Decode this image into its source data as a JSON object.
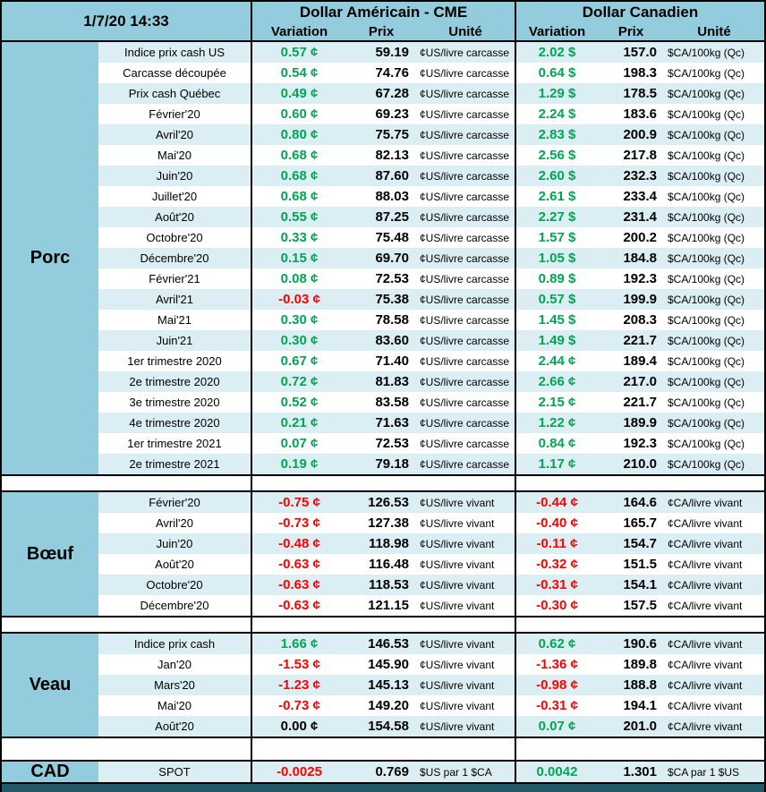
{
  "colors": {
    "header_blue": "#93CDDD",
    "band_blue": "#DAEEF3",
    "positive": "#00A651",
    "negative": "#FF0000",
    "footer_navy": "#215967"
  },
  "chart_data": {
    "type": "table",
    "timestamp": "1/7/20 14:33",
    "column_groups": [
      {
        "title": "Dollar Américain - CME",
        "columns": [
          "Variation",
          "Prix",
          "Unité"
        ]
      },
      {
        "title": "Dollar Canadien",
        "columns": [
          "Variation",
          "Prix",
          "Unité"
        ]
      }
    ],
    "sections": [
      {
        "name": "Porc",
        "rows": [
          {
            "label": "Indice prix cash US",
            "us": {
              "var": "0.57 ¢",
              "trend": "up",
              "prix": "59.19",
              "unit": "¢US/livre carcasse"
            },
            "ca": {
              "var": "2.02 $",
              "trend": "up",
              "prix": "157.0",
              "unit": "$CA/100kg (Qc)"
            }
          },
          {
            "label": "Carcasse découpée",
            "us": {
              "var": "0.54 ¢",
              "trend": "up",
              "prix": "74.76",
              "unit": "¢US/livre carcasse"
            },
            "ca": {
              "var": "0.64 $",
              "trend": "up",
              "prix": "198.3",
              "unit": "$CA/100kg (Qc)"
            }
          },
          {
            "label": "Prix cash Québec",
            "us": {
              "var": "0.49 ¢",
              "trend": "up",
              "prix": "67.28",
              "unit": "¢US/livre carcasse"
            },
            "ca": {
              "var": "1.29 $",
              "trend": "up",
              "prix": "178.5",
              "unit": "$CA/100kg (Qc)"
            }
          },
          {
            "label": "Février'20",
            "us": {
              "var": "0.60 ¢",
              "trend": "up",
              "prix": "69.23",
              "unit": "¢US/livre carcasse"
            },
            "ca": {
              "var": "2.24 $",
              "trend": "up",
              "prix": "183.6",
              "unit": "$CA/100kg (Qc)"
            }
          },
          {
            "label": "Avril'20",
            "us": {
              "var": "0.80 ¢",
              "trend": "up",
              "prix": "75.75",
              "unit": "¢US/livre carcasse"
            },
            "ca": {
              "var": "2.83 $",
              "trend": "up",
              "prix": "200.9",
              "unit": "$CA/100kg (Qc)"
            }
          },
          {
            "label": "Mai'20",
            "us": {
              "var": "0.68 ¢",
              "trend": "up",
              "prix": "82.13",
              "unit": "¢US/livre carcasse"
            },
            "ca": {
              "var": "2.56 $",
              "trend": "up",
              "prix": "217.8",
              "unit": "$CA/100kg (Qc)"
            }
          },
          {
            "label": "Juin'20",
            "us": {
              "var": "0.68 ¢",
              "trend": "up",
              "prix": "87.60",
              "unit": "¢US/livre carcasse"
            },
            "ca": {
              "var": "2.60 $",
              "trend": "up",
              "prix": "232.3",
              "unit": "$CA/100kg (Qc)"
            }
          },
          {
            "label": "Juillet'20",
            "us": {
              "var": "0.68 ¢",
              "trend": "up",
              "prix": "88.03",
              "unit": "¢US/livre carcasse"
            },
            "ca": {
              "var": "2.61 $",
              "trend": "up",
              "prix": "233.4",
              "unit": "$CA/100kg (Qc)"
            }
          },
          {
            "label": "Août'20",
            "us": {
              "var": "0.55 ¢",
              "trend": "up",
              "prix": "87.25",
              "unit": "¢US/livre carcasse"
            },
            "ca": {
              "var": "2.27 $",
              "trend": "up",
              "prix": "231.4",
              "unit": "$CA/100kg (Qc)"
            }
          },
          {
            "label": "Octobre'20",
            "us": {
              "var": "0.33 ¢",
              "trend": "up",
              "prix": "75.48",
              "unit": "¢US/livre carcasse"
            },
            "ca": {
              "var": "1.57 $",
              "trend": "up",
              "prix": "200.2",
              "unit": "$CA/100kg (Qc)"
            }
          },
          {
            "label": "Décembre'20",
            "us": {
              "var": "0.15 ¢",
              "trend": "up",
              "prix": "69.70",
              "unit": "¢US/livre carcasse"
            },
            "ca": {
              "var": "1.05 $",
              "trend": "up",
              "prix": "184.8",
              "unit": "$CA/100kg (Qc)"
            }
          },
          {
            "label": "Février'21",
            "us": {
              "var": "0.08 ¢",
              "trend": "up",
              "prix": "72.53",
              "unit": "¢US/livre carcasse"
            },
            "ca": {
              "var": "0.89 $",
              "trend": "up",
              "prix": "192.3",
              "unit": "$CA/100kg (Qc)"
            }
          },
          {
            "label": "Avril'21",
            "us": {
              "var": "-0.03 ¢",
              "trend": "down",
              "prix": "75.38",
              "unit": "¢US/livre carcasse"
            },
            "ca": {
              "var": "0.57 $",
              "trend": "up",
              "prix": "199.9",
              "unit": "$CA/100kg (Qc)"
            }
          },
          {
            "label": "Mai'21",
            "us": {
              "var": "0.30 ¢",
              "trend": "up",
              "prix": "78.58",
              "unit": "¢US/livre carcasse"
            },
            "ca": {
              "var": "1.45 $",
              "trend": "up",
              "prix": "208.3",
              "unit": "$CA/100kg (Qc)"
            }
          },
          {
            "label": "Juin'21",
            "us": {
              "var": "0.30 ¢",
              "trend": "up",
              "prix": "83.60",
              "unit": "¢US/livre carcasse"
            },
            "ca": {
              "var": "1.49 $",
              "trend": "up",
              "prix": "221.7",
              "unit": "$CA/100kg (Qc)"
            }
          },
          {
            "label": "1er trimestre 2020",
            "us": {
              "var": "0.67 ¢",
              "trend": "up",
              "prix": "71.40",
              "unit": "¢US/livre carcasse"
            },
            "ca": {
              "var": "2.44 ¢",
              "trend": "up",
              "prix": "189.4",
              "unit": "$CA/100kg (Qc)"
            }
          },
          {
            "label": "2e trimestre 2020",
            "us": {
              "var": "0.72 ¢",
              "trend": "up",
              "prix": "81.83",
              "unit": "¢US/livre carcasse"
            },
            "ca": {
              "var": "2.66 ¢",
              "trend": "up",
              "prix": "217.0",
              "unit": "$CA/100kg (Qc)"
            }
          },
          {
            "label": "3e trimestre 2020",
            "us": {
              "var": "0.52 ¢",
              "trend": "up",
              "prix": "83.58",
              "unit": "¢US/livre carcasse"
            },
            "ca": {
              "var": "2.15 ¢",
              "trend": "up",
              "prix": "221.7",
              "unit": "$CA/100kg (Qc)"
            }
          },
          {
            "label": "4e trimestre 2020",
            "us": {
              "var": "0.21 ¢",
              "trend": "up",
              "prix": "71.63",
              "unit": "¢US/livre carcasse"
            },
            "ca": {
              "var": "1.22 ¢",
              "trend": "up",
              "prix": "189.9",
              "unit": "$CA/100kg (Qc)"
            }
          },
          {
            "label": "1er trimestre 2021",
            "us": {
              "var": "0.07 ¢",
              "trend": "up",
              "prix": "72.53",
              "unit": "¢US/livre carcasse"
            },
            "ca": {
              "var": "0.84 ¢",
              "trend": "up",
              "prix": "192.3",
              "unit": "$CA/100kg (Qc)"
            }
          },
          {
            "label": "2e trimestre 2021",
            "us": {
              "var": "0.19 ¢",
              "trend": "up",
              "prix": "79.18",
              "unit": "¢US/livre carcasse"
            },
            "ca": {
              "var": "1.17 ¢",
              "trend": "up",
              "prix": "210.0",
              "unit": "$CA/100kg (Qc)"
            }
          }
        ]
      },
      {
        "name": "Bœuf",
        "rows": [
          {
            "label": "Février'20",
            "us": {
              "var": "-0.75 ¢",
              "trend": "down",
              "prix": "126.53",
              "unit": "¢US/livre vivant"
            },
            "ca": {
              "var": "-0.44 ¢",
              "trend": "down",
              "prix": "164.6",
              "unit": "¢CA/livre vivant"
            }
          },
          {
            "label": "Avril'20",
            "us": {
              "var": "-0.73 ¢",
              "trend": "down",
              "prix": "127.38",
              "unit": "¢US/livre vivant"
            },
            "ca": {
              "var": "-0.40 ¢",
              "trend": "down",
              "prix": "165.7",
              "unit": "¢CA/livre vivant"
            }
          },
          {
            "label": "Juin'20",
            "us": {
              "var": "-0.48 ¢",
              "trend": "down",
              "prix": "118.98",
              "unit": "¢US/livre vivant"
            },
            "ca": {
              "var": "-0.11 ¢",
              "trend": "down",
              "prix": "154.7",
              "unit": "¢CA/livre vivant"
            }
          },
          {
            "label": "Août'20",
            "us": {
              "var": "-0.63 ¢",
              "trend": "down",
              "prix": "116.48",
              "unit": "¢US/livre vivant"
            },
            "ca": {
              "var": "-0.32 ¢",
              "trend": "down",
              "prix": "151.5",
              "unit": "¢CA/livre vivant"
            }
          },
          {
            "label": "Octobre'20",
            "us": {
              "var": "-0.63 ¢",
              "trend": "down",
              "prix": "118.53",
              "unit": "¢US/livre vivant"
            },
            "ca": {
              "var": "-0.31 ¢",
              "trend": "down",
              "prix": "154.1",
              "unit": "¢CA/livre vivant"
            }
          },
          {
            "label": "Décembre'20",
            "us": {
              "var": "-0.63 ¢",
              "trend": "down",
              "prix": "121.15",
              "unit": "¢US/livre vivant"
            },
            "ca": {
              "var": "-0.30 ¢",
              "trend": "down",
              "prix": "157.5",
              "unit": "¢CA/livre vivant"
            }
          }
        ]
      },
      {
        "name": "Veau",
        "rows": [
          {
            "label": "Indice prix cash",
            "us": {
              "var": "1.66 ¢",
              "trend": "up",
              "prix": "146.53",
              "unit": "¢US/livre vivant"
            },
            "ca": {
              "var": "0.62 ¢",
              "trend": "up",
              "prix": "190.6",
              "unit": "¢CA/livre vivant"
            }
          },
          {
            "label": "Jan'20",
            "us": {
              "var": "-1.53 ¢",
              "trend": "down",
              "prix": "145.90",
              "unit": "¢US/livre vivant"
            },
            "ca": {
              "var": "-1.36 ¢",
              "trend": "down",
              "prix": "189.8",
              "unit": "¢CA/livre vivant"
            }
          },
          {
            "label": "Mars'20",
            "us": {
              "var": "-1.23 ¢",
              "trend": "down",
              "prix": "145.13",
              "unit": "¢US/livre vivant"
            },
            "ca": {
              "var": "-0.98 ¢",
              "trend": "down",
              "prix": "188.8",
              "unit": "¢CA/livre vivant"
            }
          },
          {
            "label": "Mai'20",
            "us": {
              "var": "-0.73 ¢",
              "trend": "down",
              "prix": "149.20",
              "unit": "¢US/livre vivant"
            },
            "ca": {
              "var": "-0.31 ¢",
              "trend": "down",
              "prix": "194.1",
              "unit": "¢CA/livre vivant"
            }
          },
          {
            "label": "Août'20",
            "us": {
              "var": "0.00 ¢",
              "trend": "flat",
              "prix": "154.58",
              "unit": "¢US/livre vivant"
            },
            "ca": {
              "var": "0.07 ¢",
              "trend": "up",
              "prix": "201.0",
              "unit": "¢CA/livre vivant"
            }
          }
        ]
      },
      {
        "name": "CAD",
        "rows": [
          {
            "label": "SPOT",
            "us": {
              "var": "-0.0025",
              "trend": "down",
              "prix": "0.769",
              "unit": "$US par 1 $CA"
            },
            "ca": {
              "var": "0.0042",
              "trend": "up",
              "prix": "1.301",
              "unit": "$CA par 1 $US"
            }
          }
        ]
      }
    ]
  }
}
